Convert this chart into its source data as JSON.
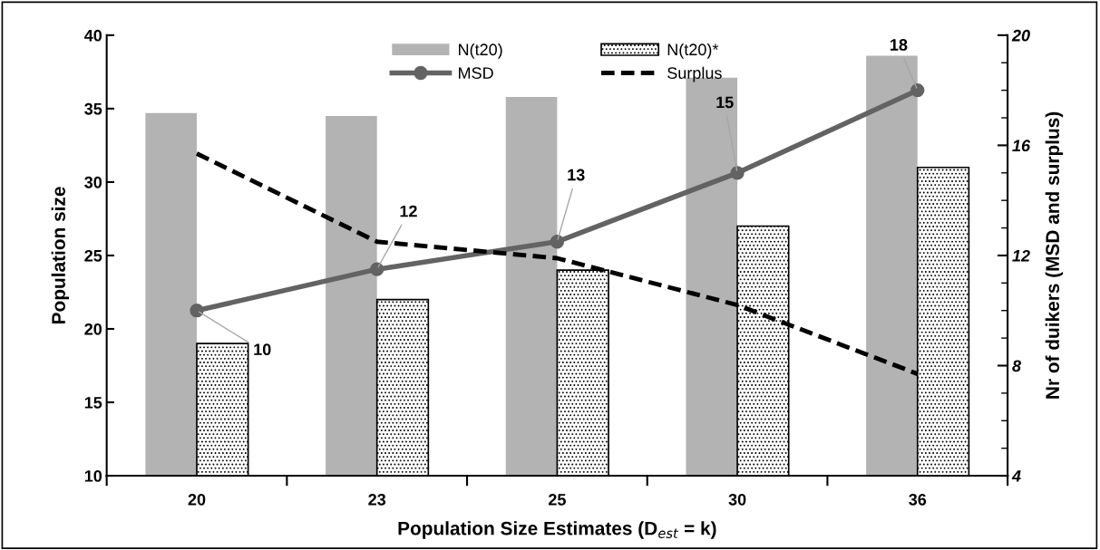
{
  "chart_data": {
    "type": "bar",
    "xlabel": "Population Size Estimates (D$_{est}$ = k)",
    "ylabel": "Population size",
    "y2label": "Nr of duikers (MSD and surplus)",
    "categories": [
      "20",
      "23",
      "25",
      "30",
      "36"
    ],
    "series": [
      {
        "name": "N(t20)",
        "color": "#b3b3b3",
        "values": [
          34.7,
          34.5,
          35.8,
          37.1,
          38.6
        ]
      },
      {
        "name": "N(t20)*",
        "color": "#000000",
        "values": [
          19,
          22,
          24,
          27,
          31
        ]
      },
      {
        "name": "MSD",
        "type": "line",
        "axis": "y2",
        "color": "#636363",
        "marker": "circle",
        "line_style": "solid",
        "values": [
          10,
          11.5,
          12.5,
          15,
          18
        ],
        "value_labels": [
          "10",
          "12",
          "13",
          "15",
          "18"
        ]
      },
      {
        "name": "Surplus",
        "type": "line",
        "axis": "y2",
        "color": "#000000",
        "marker": "none",
        "line_style": "dashed",
        "values": [
          15.7,
          12.5,
          11.9,
          10.2,
          7.7
        ]
      }
    ],
    "ylim": [
      10,
      40
    ],
    "yticks": [
      10,
      15,
      20,
      25,
      30,
      35,
      40
    ],
    "y2lim": [
      4,
      20
    ],
    "y2ticks": [
      4,
      8,
      12,
      16,
      20
    ],
    "grid": false,
    "legend": "top"
  }
}
